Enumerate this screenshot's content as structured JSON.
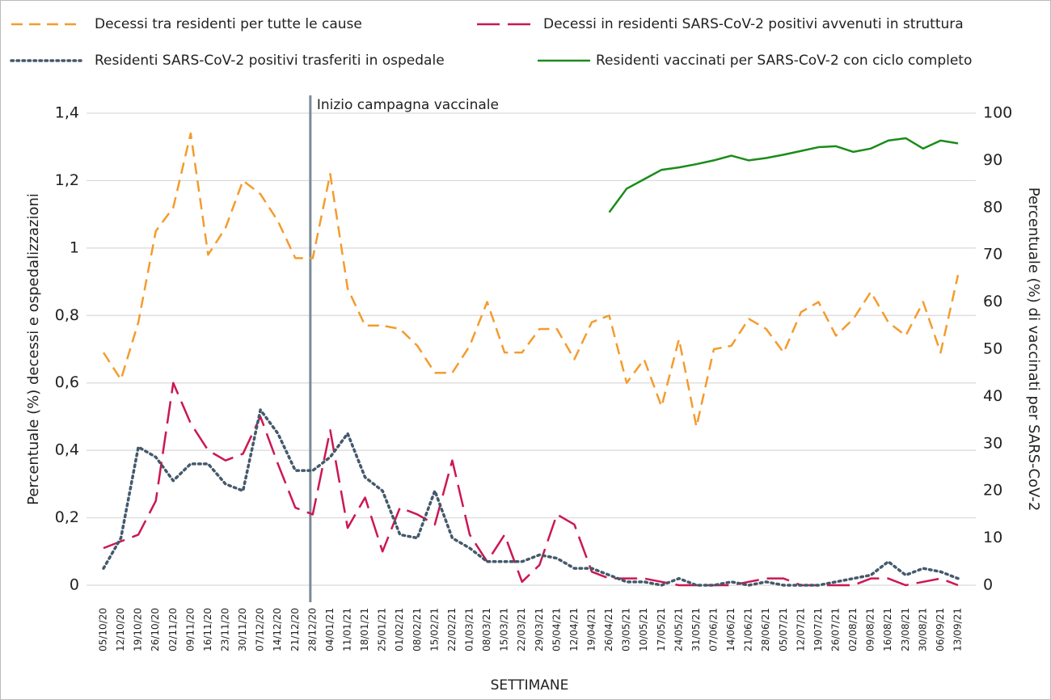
{
  "chart_data": {
    "type": "line",
    "xlabel": "SETTIMANE",
    "ylabel": "Percentuale (%) decessi e ospedalizzazioni",
    "y2label": "Percentuale (%) di vaccinati per SARS-CoV-2",
    "categories": [
      "05/10/20",
      "12/10/20",
      "19/10/20",
      "26/10/20",
      "02/11/20",
      "09/11/20",
      "16/11/20",
      "23/11/20",
      "30/11/20",
      "07/12/20",
      "14/12/20",
      "21/12/20",
      "28/12/20",
      "04/01/21",
      "11/01/21",
      "18/01/21",
      "25/01/21",
      "01/02/21",
      "08/02/21",
      "15/02/21",
      "22/02/21",
      "01/03/21",
      "08/03/21",
      "15/03/21",
      "22/03/21",
      "29/03/21",
      "05/04/21",
      "12/04/21",
      "19/04/21",
      "26/04/21",
      "03/05/21",
      "10/05/21",
      "17/05/21",
      "24/05/21",
      "31/05/21",
      "07/06/21",
      "14/06/21",
      "21/06/21",
      "28/06/21",
      "05/07/21",
      "12/07/21",
      "19/07/21",
      "26/07/21",
      "02/08/21",
      "09/08/21",
      "16/08/21",
      "23/08/21",
      "30/08/21",
      "06/09/21",
      "13/09/21"
    ],
    "series": [
      {
        "name": "Decessi tra residenti per tutte le cause",
        "color": "#f39c2e",
        "dash": "dashed",
        "values": [
          0.69,
          0.61,
          0.78,
          1.05,
          1.12,
          1.34,
          0.98,
          1.06,
          1.2,
          1.16,
          1.08,
          0.97,
          0.97,
          1.22,
          0.88,
          0.77,
          0.77,
          0.76,
          0.71,
          0.63,
          0.63,
          0.71,
          0.84,
          0.69,
          0.69,
          0.76,
          0.76,
          0.67,
          0.78,
          0.8,
          0.6,
          0.67,
          0.53,
          0.73,
          0.47,
          0.7,
          0.71,
          0.79,
          0.76,
          0.69,
          0.81,
          0.84,
          0.74,
          0.79,
          0.87,
          0.78,
          0.74,
          0.84,
          0.69,
          0.92
        ]
      },
      {
        "name": "Decessi in residenti SARS-CoV-2 positivi avvenuti in struttura",
        "color": "#cc1752",
        "dash": "long-dash",
        "values": [
          0.11,
          0.13,
          0.15,
          0.25,
          0.6,
          0.48,
          0.4,
          0.37,
          0.39,
          0.5,
          0.36,
          0.23,
          0.21,
          0.46,
          0.17,
          0.26,
          0.1,
          0.23,
          0.21,
          0.18,
          0.37,
          0.15,
          0.07,
          0.15,
          0.01,
          0.06,
          0.21,
          0.18,
          0.04,
          0.02,
          0.02,
          0.02,
          0.01,
          0.0,
          0.0,
          0.0,
          0.0,
          0.01,
          0.02,
          0.02,
          0.0,
          0.0,
          0.0,
          0.0,
          0.02,
          0.02,
          0.0,
          0.01,
          0.02,
          0.0
        ]
      },
      {
        "name": "Residenti SARS-CoV-2 positivi trasferiti in ospedale",
        "color": "#44596c",
        "dash": "dotted",
        "values": [
          0.05,
          0.14,
          0.41,
          0.38,
          0.31,
          0.36,
          0.36,
          0.3,
          0.28,
          0.52,
          0.45,
          0.34,
          0.34,
          0.38,
          0.45,
          0.32,
          0.28,
          0.15,
          0.14,
          0.28,
          0.14,
          0.11,
          0.07,
          0.07,
          0.07,
          0.09,
          0.08,
          0.05,
          0.05,
          0.03,
          0.01,
          0.01,
          0.0,
          0.02,
          0.0,
          0.0,
          0.01,
          0.0,
          0.01,
          0.0,
          0.0,
          0.0,
          0.01,
          0.02,
          0.03,
          0.07,
          0.03,
          0.05,
          0.04,
          0.02
        ]
      },
      {
        "name": "Residenti vaccinati per SARS-CoV-2 con ciclo completo",
        "color": "#1a8c1a",
        "dash": "solid",
        "axis": "y2",
        "values": [
          null,
          null,
          null,
          null,
          null,
          null,
          null,
          null,
          null,
          null,
          null,
          null,
          null,
          null,
          null,
          null,
          null,
          null,
          null,
          null,
          null,
          null,
          null,
          null,
          null,
          null,
          null,
          null,
          null,
          79,
          84,
          86,
          88,
          88.5,
          89.2,
          90,
          91,
          90,
          90.5,
          91.2,
          92,
          92.8,
          93,
          91.8,
          92.5,
          94.2,
          94.7,
          92.5,
          94.2,
          93.6
        ]
      }
    ],
    "ylim": [
      0,
      1.4
    ],
    "yticks": [
      0,
      {
        "value": 0.2,
        "label": "0,2"
      },
      {
        "value": 0.4,
        "label": "0,4"
      },
      {
        "value": 0.6,
        "label": "0,6"
      },
      {
        "value": 0.8,
        "label": "0,8"
      },
      1,
      {
        "value": 1.2,
        "label": "1,2"
      },
      {
        "value": 1.4,
        "label": "1,4"
      }
    ],
    "y2lim": [
      0,
      100
    ],
    "y2ticks": [
      0,
      10,
      20,
      30,
      40,
      50,
      60,
      70,
      80,
      90,
      100
    ],
    "grid": true,
    "annotation": {
      "text": "Inizio campagna vaccinale",
      "category": "28/12/20",
      "color": "#7a8a99"
    }
  }
}
